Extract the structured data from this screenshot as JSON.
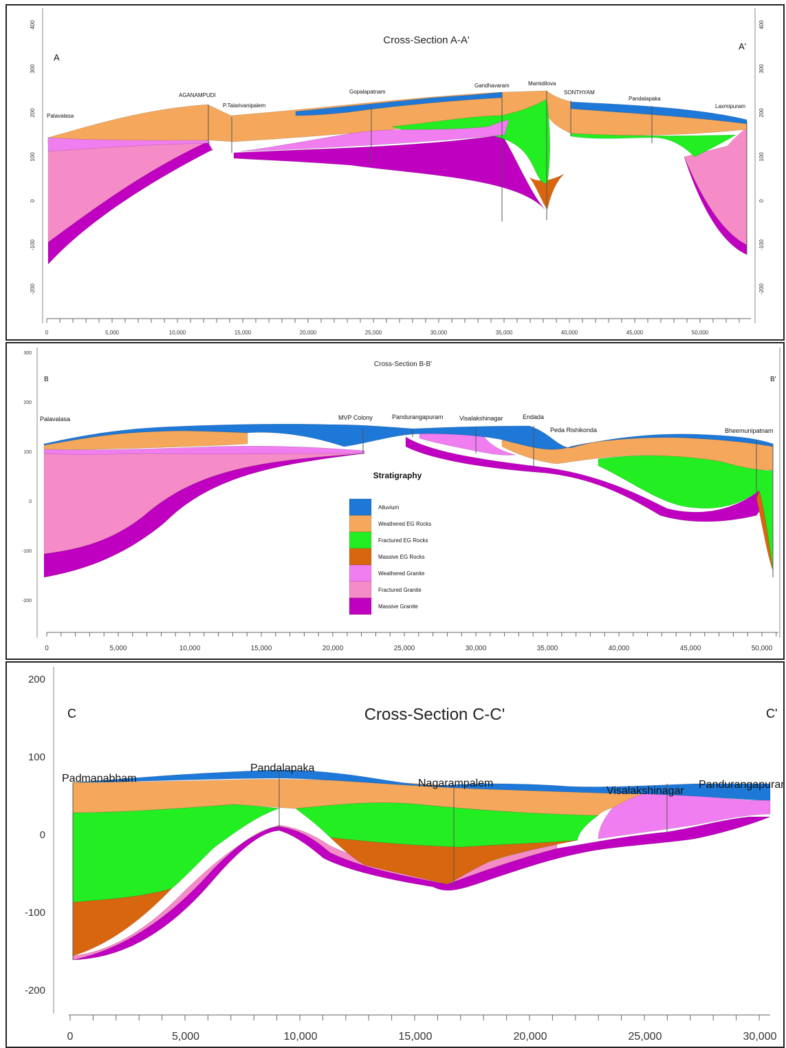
{
  "colors": {
    "alluvium": "#1e78d8",
    "weathered_eg": "#f5a85c",
    "fractured_eg": "#22ee22",
    "massive_eg": "#d8660e",
    "weathered_granite": "#f07ef0",
    "fractured_granite": "#f58cc8",
    "massive_granite": "#c000c0"
  },
  "sections": {
    "a": {
      "title": "Cross-Section A-A'",
      "end_left": "A",
      "end_right": "A'",
      "y_ticks": [
        "400",
        "300",
        "200",
        "100",
        "0",
        "-100",
        "-200"
      ],
      "x_ticks": [
        "0",
        "5,000",
        "10,000",
        "15,000",
        "20,000",
        "25,000",
        "30,000",
        "35,000",
        "40,000",
        "45,000",
        "50,000"
      ],
      "villages": [
        "Palavalasa",
        "AGANAMPUDI",
        "P.Talarivanipalem",
        "Gopalapatnam",
        "Gandhavaram",
        "Mamidilova",
        "SONTHYAM",
        "Pandalapaka",
        "Laxmipuram"
      ]
    },
    "b": {
      "title": "Cross-Section B-B'",
      "end_left": "B",
      "end_right": "B'",
      "y_ticks": [
        "300",
        "200",
        "100",
        "0",
        "-100",
        "-200"
      ],
      "x_ticks": [
        "0",
        "5,000",
        "10,000",
        "15,000",
        "20,000",
        "25,000",
        "30,000",
        "35,000",
        "40,000",
        "45,000",
        "50,000"
      ],
      "villages": [
        "Palavalasa",
        "MVP Colony",
        "Pandurangapuram",
        "Visalakshinagar",
        "Endada",
        "Peda Rishikonda",
        "Bheemunipatnam"
      ]
    },
    "c": {
      "title": "Cross-Section C-C'",
      "end_left": "C",
      "end_right": "C'",
      "y_ticks": [
        "200",
        "100",
        "0",
        "-100",
        "-200"
      ],
      "x_ticks": [
        "0",
        "5,000",
        "10,000",
        "15,000",
        "20,000",
        "25,000",
        "30,000"
      ],
      "villages": [
        "Padmanabham",
        "Pandalapaka",
        "Nagarampalem",
        "Visalakshinagar",
        "Pandurangapuram"
      ]
    }
  },
  "legend": {
    "title": "Stratigraphy",
    "items": [
      "Alluvium",
      "Weathered EG Rocks",
      "Fractured EG Rocks",
      "Massive EG Rocks",
      "Weathered Granite",
      "Fractured Granite",
      "Massive Granite"
    ]
  }
}
